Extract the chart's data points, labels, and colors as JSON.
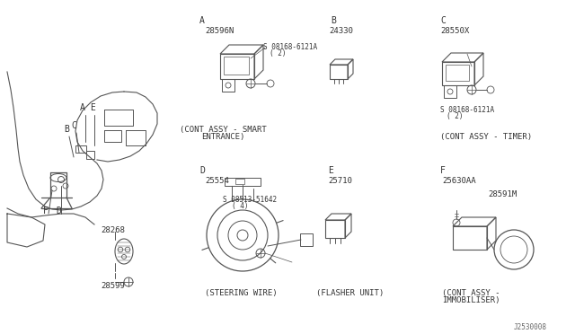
{
  "bg_color": "#ffffff",
  "line_color": "#555555",
  "text_color": "#333333",
  "parts": {
    "section_A_label": "A",
    "section_A_part": "28596N",
    "section_A_screw1": "S 08168-6121A",
    "section_A_screw2": "( 2)",
    "section_A_desc1": "(CONT ASSY - SMART",
    "section_A_desc2": "ENTRANCE)",
    "section_B_label": "B",
    "section_B_part": "24330",
    "section_C_label": "C",
    "section_C_part": "28550X",
    "section_C_screw1": "S 08168-6121A",
    "section_C_screw2": "( 2)",
    "section_C_desc": "(CONT ASSY - TIMER)",
    "section_D_label": "D",
    "section_D_part": "25554",
    "section_D_screw1": "S 08513-51642",
    "section_D_screw2": "( 4)",
    "section_D_desc": "(STEERING WIRE)",
    "section_E_label": "E",
    "section_E_part": "25710",
    "section_E_desc": "(FLASHER UNIT)",
    "section_F_label": "F",
    "section_F_part1": "25630AA",
    "section_F_part2": "28591M",
    "section_F_desc1": "(CONT ASSY -",
    "section_F_desc2": "IMMOBILISER)",
    "part_28268": "28268",
    "part_28599": "28599",
    "diagram_code": "J2530008"
  }
}
